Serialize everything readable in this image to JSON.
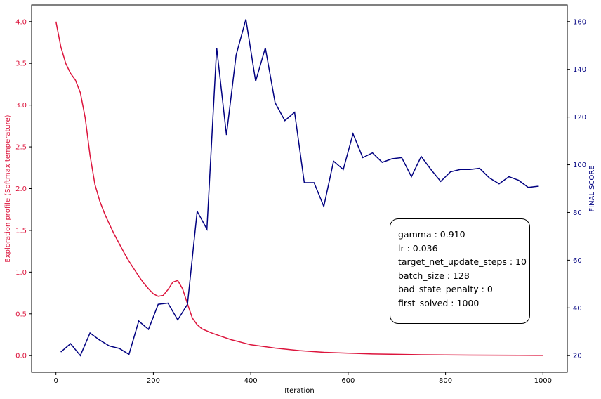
{
  "chart_data": {
    "type": "line",
    "xlabel": "Iteration",
    "x_ticks": [
      0,
      200,
      400,
      600,
      800,
      1000
    ],
    "xlim": [
      -50,
      1050
    ],
    "series": [
      {
        "name": "",
        "axis": "left",
        "color": "#dc143c",
        "x": [
          0,
          10,
          20,
          30,
          40,
          50,
          60,
          70,
          80,
          90,
          100,
          110,
          120,
          130,
          140,
          150,
          160,
          170,
          180,
          190,
          200,
          210,
          220,
          230,
          240,
          250,
          260,
          270,
          280,
          290,
          300,
          320,
          340,
          360,
          380,
          400,
          450,
          500,
          550,
          600,
          650,
          700,
          750,
          800,
          850,
          900,
          950,
          1000
        ],
        "values": [
          4.0,
          3.7,
          3.5,
          3.38,
          3.3,
          3.15,
          2.85,
          2.4,
          2.05,
          1.85,
          1.7,
          1.57,
          1.45,
          1.34,
          1.23,
          1.13,
          1.04,
          0.95,
          0.87,
          0.8,
          0.74,
          0.71,
          0.72,
          0.79,
          0.88,
          0.9,
          0.8,
          0.62,
          0.45,
          0.37,
          0.32,
          0.27,
          0.23,
          0.19,
          0.16,
          0.13,
          0.09,
          0.06,
          0.04,
          0.03,
          0.02,
          0.015,
          0.01,
          0.008,
          0.006,
          0.005,
          0.004,
          0.003
        ]
      },
      {
        "name": "",
        "axis": "right",
        "color": "#000080",
        "x": [
          10,
          30,
          50,
          70,
          90,
          110,
          130,
          150,
          170,
          190,
          210,
          230,
          250,
          270,
          290,
          310,
          330,
          350,
          370,
          390,
          410,
          430,
          450,
          470,
          490,
          510,
          530,
          550,
          570,
          590,
          610,
          630,
          650,
          670,
          690,
          710,
          730,
          750,
          770,
          790,
          810,
          830,
          850,
          870,
          890,
          910,
          930,
          950,
          970,
          990
        ],
        "values": [
          21.5,
          25,
          20,
          29.5,
          26.5,
          24,
          23,
          20.5,
          34.5,
          31,
          41.5,
          42,
          35,
          41.5,
          80.5,
          73,
          149,
          112.5,
          146,
          161,
          135,
          149,
          126,
          118.5,
          122,
          92.5,
          92.5,
          82.5,
          101.5,
          98,
          113,
          103,
          105,
          101,
          102.5,
          103,
          95,
          103.5,
          98,
          93,
          97,
          98,
          98,
          98.5,
          94.5,
          92,
          95,
          93.5,
          90.5,
          91
        ]
      }
    ],
    "y_left": {
      "label": "Exploration profile (Softmax temperature)",
      "color": "#dc143c",
      "ticks": [
        0.0,
        0.5,
        1.0,
        1.5,
        2.0,
        2.5,
        3.0,
        3.5,
        4.0
      ],
      "tick_labels": [
        "0.0",
        "0.5",
        "1.0",
        "1.5",
        "2.0",
        "2.5",
        "3.0",
        "3.5",
        "4.0"
      ],
      "ylim": [
        -0.2,
        4.2
      ]
    },
    "y_right": {
      "label": "FINAL SCORE",
      "color": "#000080",
      "ticks": [
        20,
        40,
        60,
        80,
        100,
        120,
        140,
        160
      ],
      "ylim": [
        13,
        167
      ]
    },
    "annotation": [
      "gamma : 0.910",
      "lr : 0.036",
      "target_net_update_steps : 10",
      "batch_size : 128",
      "bad_state_penalty : 0",
      "first_solved : 1000"
    ]
  }
}
